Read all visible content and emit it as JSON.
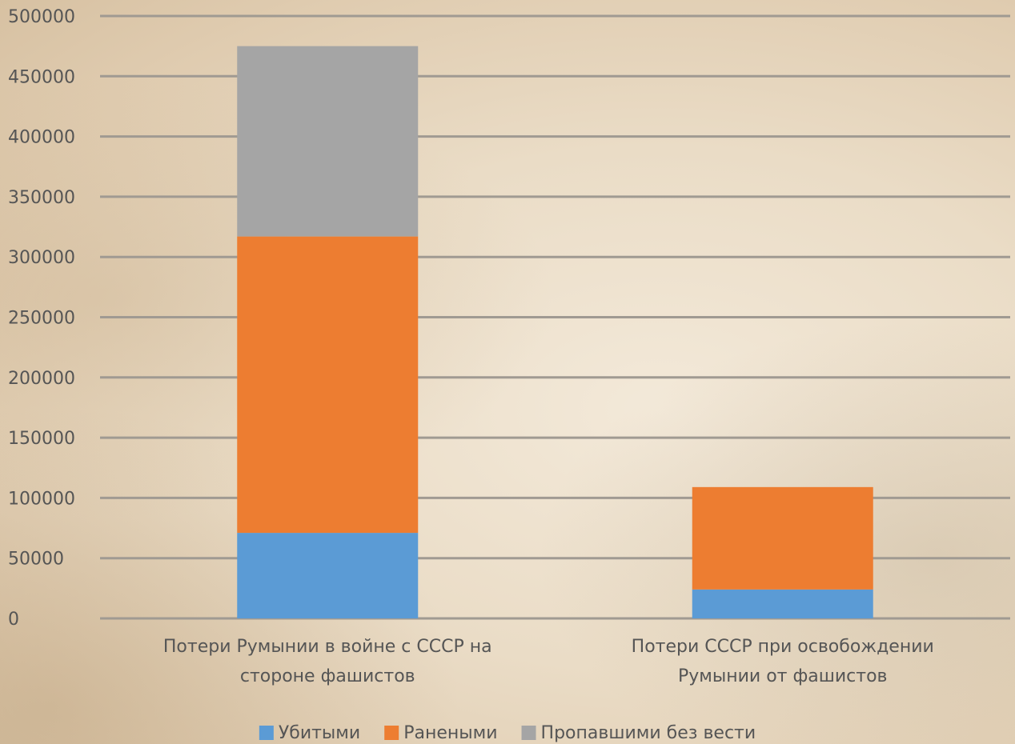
{
  "chart_data": {
    "type": "bar",
    "stacked": true,
    "categories": [
      [
        "Потери Румынии в войне с СССР на",
        "стороне фашистов"
      ],
      [
        "Потери СССР при освобождении",
        "Румынии от фашистов"
      ]
    ],
    "series": [
      {
        "name": "Убитыми",
        "color": "#5b9bd5",
        "values": [
          71000,
          24000
        ]
      },
      {
        "name": "Ранеными",
        "color": "#ed7d31",
        "values": [
          246000,
          85000
        ]
      },
      {
        "name": "Пропавшими без вести",
        "color": "#a5a5a5",
        "values": [
          158000,
          0
        ]
      }
    ],
    "ylim": [
      0,
      500000
    ],
    "yticks": [
      "0",
      "50000",
      "100000",
      "150000",
      "200000",
      "250000",
      "300000",
      "350000",
      "400000",
      "450000",
      "500000"
    ],
    "grid": true,
    "legend": "bottom"
  }
}
